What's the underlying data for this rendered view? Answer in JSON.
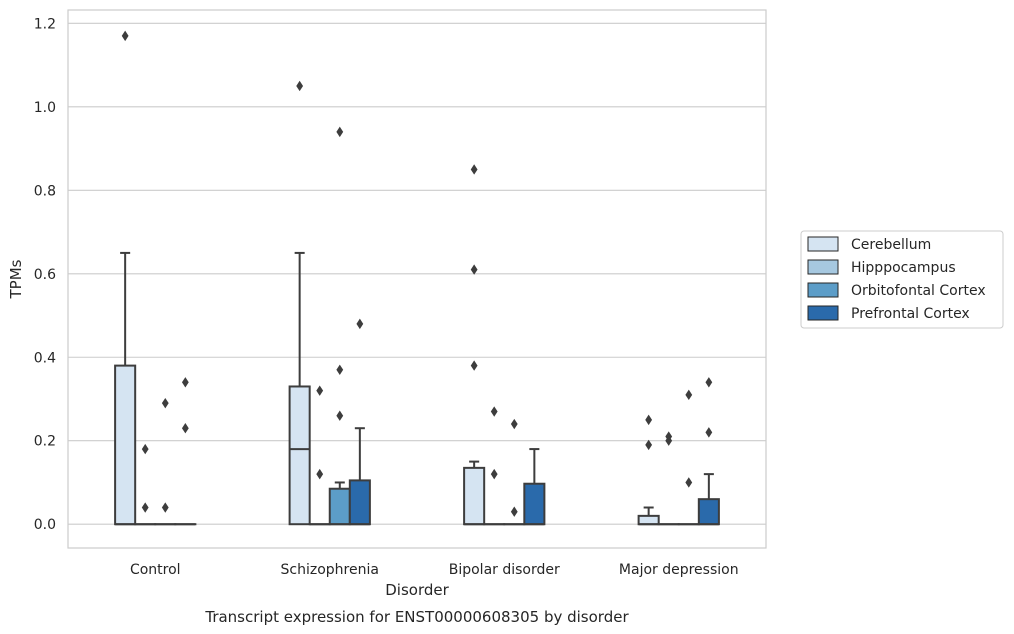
{
  "chart_data": {
    "type": "box",
    "xlabel": "Disorder",
    "ylabel": "TPMs",
    "caption": "Transcript expression for ENST00000608305 by disorder",
    "ylim": [
      -0.057,
      1.232
    ],
    "yticks": [
      "0.0",
      "0.2",
      "0.4",
      "0.6",
      "0.8",
      "1.0",
      "1.2"
    ],
    "grid": true,
    "legend_position": "right",
    "categories": [
      "Control",
      "Schizophrenia",
      "Bipolar disorder",
      "Major depression"
    ],
    "series": [
      {
        "name": "Cerebellum",
        "color": "#d5e4f2",
        "boxes": [
          {
            "q1": 0.0,
            "median": 0.0,
            "q3": 0.38,
            "whisker_low": 0.0,
            "whisker_high": 0.65,
            "outliers": [
              1.17
            ]
          },
          {
            "q1": 0.0,
            "median": 0.18,
            "q3": 0.33,
            "whisker_low": 0.0,
            "whisker_high": 0.65,
            "outliers": [
              1.05
            ]
          },
          {
            "q1": 0.0,
            "median": 0.0,
            "q3": 0.135,
            "whisker_low": 0.0,
            "whisker_high": 0.15,
            "outliers": [
              0.85,
              0.61,
              0.38
            ]
          },
          {
            "q1": 0.0,
            "median": 0.0,
            "q3": 0.02,
            "whisker_low": 0.0,
            "whisker_high": 0.04,
            "outliers": [
              0.25,
              0.19
            ]
          }
        ]
      },
      {
        "name": "Hipppocampus",
        "color": "#a6c8e0",
        "boxes": [
          {
            "q1": 0.0,
            "median": 0.0,
            "q3": 0.0,
            "whisker_low": 0.0,
            "whisker_high": 0.0,
            "outliers": [
              0.18,
              0.04
            ]
          },
          {
            "q1": 0.0,
            "median": 0.0,
            "q3": 0.0,
            "whisker_low": 0.0,
            "whisker_high": 0.0,
            "outliers": [
              0.32,
              0.12
            ]
          },
          {
            "q1": 0.0,
            "median": 0.0,
            "q3": 0.0,
            "whisker_low": 0.0,
            "whisker_high": 0.0,
            "outliers": [
              0.27,
              0.12
            ]
          },
          {
            "q1": 0.0,
            "median": 0.0,
            "q3": 0.0,
            "whisker_low": 0.0,
            "whisker_high": 0.0,
            "outliers": [
              0.21,
              0.2
            ]
          }
        ]
      },
      {
        "name": "Orbitofontal Cortex",
        "color": "#5c9dc8",
        "boxes": [
          {
            "q1": 0.0,
            "median": 0.0,
            "q3": 0.0,
            "whisker_low": 0.0,
            "whisker_high": 0.0,
            "outliers": [
              0.29,
              0.04
            ]
          },
          {
            "q1": 0.0,
            "median": 0.0,
            "q3": 0.085,
            "whisker_low": 0.0,
            "whisker_high": 0.1,
            "outliers": [
              0.94,
              0.37,
              0.26
            ]
          },
          {
            "q1": 0.0,
            "median": 0.0,
            "q3": 0.0,
            "whisker_low": 0.0,
            "whisker_high": 0.0,
            "outliers": [
              0.24,
              0.03
            ]
          },
          {
            "q1": 0.0,
            "median": 0.0,
            "q3": 0.0,
            "whisker_low": 0.0,
            "whisker_high": 0.0,
            "outliers": [
              0.31,
              0.1
            ]
          }
        ]
      },
      {
        "name": "Prefrontal Cortex",
        "color": "#2a6aab",
        "boxes": [
          {
            "q1": 0.0,
            "median": 0.0,
            "q3": 0.0,
            "whisker_low": 0.0,
            "whisker_high": 0.0,
            "outliers": [
              0.34,
              0.23
            ]
          },
          {
            "q1": 0.0,
            "median": 0.0,
            "q3": 0.105,
            "whisker_low": 0.0,
            "whisker_high": 0.23,
            "outliers": [
              0.48
            ]
          },
          {
            "q1": 0.0,
            "median": 0.0,
            "q3": 0.097,
            "whisker_low": 0.0,
            "whisker_high": 0.18,
            "outliers": []
          },
          {
            "q1": 0.0,
            "median": 0.0,
            "q3": 0.06,
            "whisker_low": 0.0,
            "whisker_high": 0.12,
            "outliers": [
              0.34,
              0.22
            ]
          }
        ]
      }
    ],
    "style": {
      "grid_color": "#cccccc",
      "spine_color": "#cccccc",
      "line_color": "#3d3d3d"
    }
  }
}
